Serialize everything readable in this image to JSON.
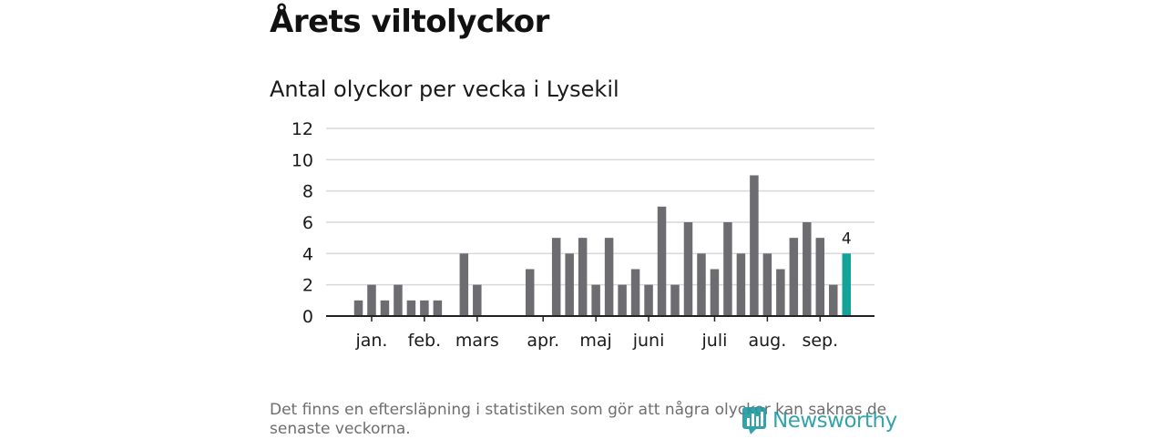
{
  "header": {
    "title": "Årets viltolyckor"
  },
  "chart_data": {
    "type": "bar",
    "title": "Antal olyckor per vecka i Lysekil",
    "xlabel": "",
    "ylabel": "",
    "ylim": [
      0,
      12
    ],
    "yticks": [
      "0",
      "2",
      "4",
      "6",
      "8",
      "10",
      "12"
    ],
    "weeks": [
      1,
      2,
      3,
      4,
      5,
      6,
      7,
      8,
      9,
      10,
      11,
      12,
      13,
      14,
      15,
      16,
      17,
      18,
      19,
      20,
      21,
      22,
      23,
      24,
      25,
      26,
      27,
      28,
      29,
      30,
      31,
      32,
      33,
      34,
      35,
      36,
      37,
      38,
      39
    ],
    "values": [
      0,
      1,
      2,
      1,
      2,
      1,
      1,
      1,
      0,
      4,
      2,
      0,
      0,
      0,
      3,
      0,
      5,
      4,
      5,
      2,
      5,
      2,
      3,
      2,
      7,
      2,
      6,
      4,
      3,
      6,
      4,
      9,
      4,
      3,
      5,
      6,
      5,
      2,
      4
    ],
    "month_labels": [
      {
        "label": "jan.",
        "week": 3
      },
      {
        "label": "feb.",
        "week": 7
      },
      {
        "label": "mars",
        "week": 11
      },
      {
        "label": "apr.",
        "week": 16
      },
      {
        "label": "maj",
        "week": 20
      },
      {
        "label": "juni",
        "week": 24
      },
      {
        "label": "juli",
        "week": 29
      },
      {
        "label": "aug.",
        "week": 33
      },
      {
        "label": "sep.",
        "week": 37
      }
    ],
    "highlight_last": true,
    "last_value_label": "4",
    "colors": {
      "bar": "#6d6c70",
      "highlight": "#14a399",
      "grid": "#d9d9d9",
      "axis": "#222222"
    }
  },
  "footer": {
    "note": "Det finns en eftersläpning i statistiken som gör att några olyckor kan saknas de senaste veckorna.",
    "logo_text": "Newsworthy"
  }
}
